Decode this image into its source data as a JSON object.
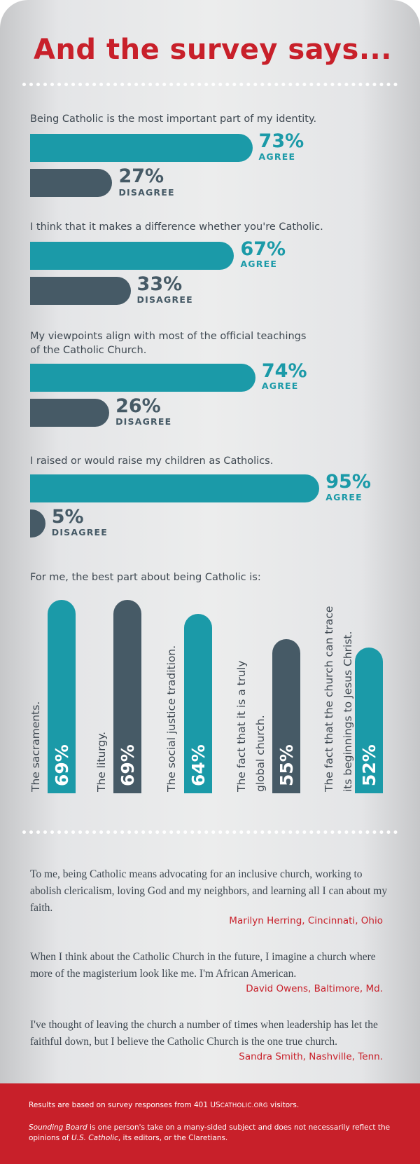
{
  "title": "And the survey says...",
  "chart_data": [
    {
      "type": "bar",
      "title": "Being Catholic is the most important part of my identity.",
      "categories": [
        "AGREE",
        "DISAGREE"
      ],
      "values": [
        73,
        27
      ],
      "unit": "%"
    },
    {
      "type": "bar",
      "title": "I think that it makes a difference whether you're Catholic.",
      "categories": [
        "AGREE",
        "DISAGREE"
      ],
      "values": [
        67,
        33
      ],
      "unit": "%"
    },
    {
      "type": "bar",
      "title": "My viewpoints align with most of the official teachings\nof the Catholic Church.",
      "categories": [
        "AGREE",
        "DISAGREE"
      ],
      "values": [
        74,
        26
      ],
      "unit": "%"
    },
    {
      "type": "bar",
      "title": "I raised or would raise my children as Catholics.",
      "categories": [
        "AGREE",
        "DISAGREE"
      ],
      "values": [
        95,
        5
      ],
      "unit": "%"
    },
    {
      "type": "bar",
      "orientation": "vertical",
      "title": "For me, the best part about being Catholic is:",
      "categories": [
        [
          "The sacraments."
        ],
        [
          "The liturgy."
        ],
        [
          "The social justice tradition."
        ],
        [
          "The fact that it is a truly",
          "global church."
        ],
        [
          "The fact that the church can trace",
          "its beginnings to Jesus Christ."
        ]
      ],
      "values": [
        69,
        69,
        64,
        55,
        52
      ],
      "value_labels": [
        "69%",
        "69%",
        "64%",
        "55%",
        "52%"
      ],
      "bar_colors": [
        "#1b9aa8",
        "#465a66",
        "#1b9aa8",
        "#465a66",
        "#1b9aa8"
      ]
    }
  ],
  "labels": {
    "agree": "AGREE",
    "disagree": "DISAGREE"
  },
  "colors": {
    "agree": "#1b9aa8",
    "disagree": "#465a66",
    "accent": "#c8202a"
  },
  "quotes": [
    {
      "text": "To me, being Catholic means advocating for an inclusive church, working to abolish clericalism, loving God and my neighbors, and learning all I can about my faith.",
      "author": "Marilyn Herring, Cincinnati, Ohio"
    },
    {
      "text": "When I think about the Catholic Church in the future, I imagine a church where more of the magisterium look like me. I'm African American.",
      "author": "David Owens, Baltimore, Md."
    },
    {
      "text": "I've thought of leaving the church a number of times when leadership has let the faithful down, but I believe the Catholic Church is the one true church.",
      "author": "Sandra Smith, Nashville, Tenn."
    }
  ],
  "footer": {
    "results_prefix": "Results are based on survey responses from 401 US",
    "results_site": "CATHOLIC.ORG",
    "results_suffix": " visitors.",
    "sb_name": "Sounding Board",
    "sb_text_1": " is one person's take on a many-sided subject and does not necessarily reflect the opinions of ",
    "sb_pub": "U.S. Catholic",
    "sb_text_2": ", its editors, or the Claretians."
  }
}
